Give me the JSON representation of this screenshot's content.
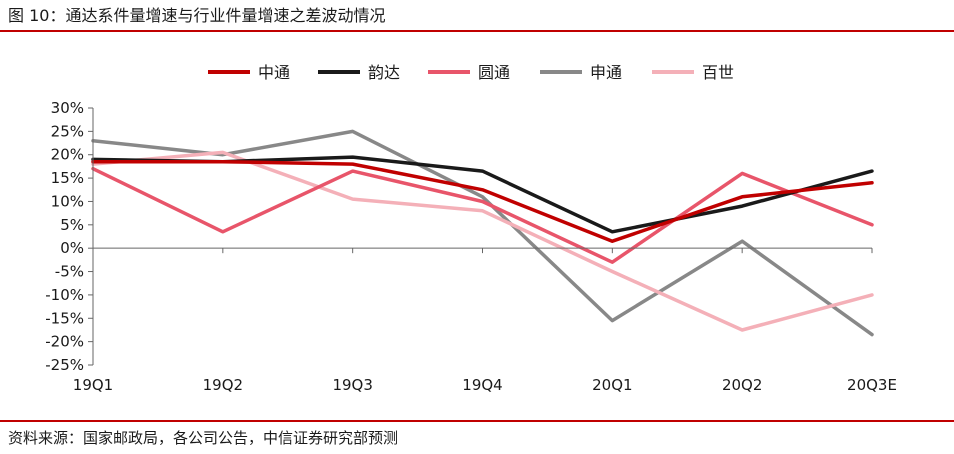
{
  "header": {
    "title": "图 10：通达系件量增速与行业件量增速之差波动情况"
  },
  "footer": {
    "source": "资料来源：国家邮政局，各公司公告，中信证券研究部预测"
  },
  "chart_data": {
    "type": "line",
    "title": "图 10：通达系件量增速与行业件量增速之差波动情况",
    "xlabel": "",
    "ylabel": "",
    "categories": [
      "19Q1",
      "19Q2",
      "19Q3",
      "19Q4",
      "20Q1",
      "20Q2",
      "20Q3E"
    ],
    "ylim": [
      -25,
      30
    ],
    "yticks": [
      30,
      25,
      20,
      15,
      10,
      5,
      0,
      -5,
      -10,
      -15,
      -20,
      -25
    ],
    "ytick_labels": [
      "30%",
      "25%",
      "20%",
      "15%",
      "10%",
      "5%",
      "0%",
      "-5%",
      "-10%",
      "-15%",
      "-20%",
      "-25%"
    ],
    "grid": false,
    "legend_position": "top-center",
    "series": [
      {
        "name": "中通",
        "color": "#c00000",
        "values": [
          18.5,
          18.5,
          18.0,
          12.5,
          1.5,
          11.0,
          14.0
        ]
      },
      {
        "name": "韵达",
        "color": "#1a1a1a",
        "values": [
          19.0,
          18.5,
          19.5,
          16.5,
          3.5,
          9.0,
          16.5
        ]
      },
      {
        "name": "圆通",
        "color": "#e8556a",
        "values": [
          17.0,
          3.5,
          16.5,
          10.0,
          -3.0,
          16.0,
          5.0
        ]
      },
      {
        "name": "申通",
        "color": "#888888",
        "values": [
          23.0,
          20.0,
          25.0,
          11.0,
          -15.5,
          1.5,
          -18.5
        ]
      },
      {
        "name": "百世",
        "color": "#f4b0b8",
        "values": [
          18.0,
          20.5,
          10.5,
          8.0,
          -5.0,
          -17.5,
          -10.0
        ]
      }
    ]
  }
}
